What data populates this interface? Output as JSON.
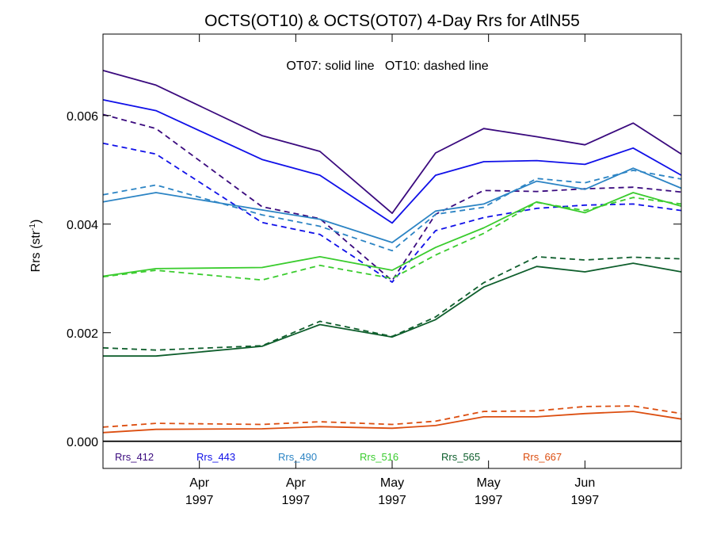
{
  "chart_data": {
    "type": "line",
    "title": "OCTS(OT10) & OCTS(OT07) 4-Day Rrs for AtlN55",
    "annotation": "OT07: solid line   OT10: dashed line",
    "ylabel_base": "Rrs (str",
    "ylabel_sup": "-1",
    "ylabel_close": ")",
    "ylim": [
      -0.0005,
      0.0075
    ],
    "yticks": [
      {
        "value": 0.0,
        "label": "0.000"
      },
      {
        "value": 0.002,
        "label": "0.002"
      },
      {
        "value": 0.004,
        "label": "0.004"
      },
      {
        "value": 0.006,
        "label": "0.006"
      }
    ],
    "xlim": [
      0,
      12
    ],
    "xticks": [
      {
        "x": 2,
        "month": "Apr",
        "year": "1997"
      },
      {
        "x": 4,
        "month": "Apr",
        "year": "1997"
      },
      {
        "x": 6,
        "month": "May",
        "year": "1997"
      },
      {
        "x": 8,
        "month": "May",
        "year": "1997"
      },
      {
        "x": 10,
        "month": "Jun",
        "year": "1997"
      }
    ],
    "x": [
      0,
      1.1,
      3.3,
      4.5,
      6.0,
      6.9,
      7.9,
      9.0,
      10.0,
      11.0,
      12.0
    ],
    "series": [
      {
        "name": "Rrs_412",
        "color": "#3a0a7e",
        "solid": [
          0.00683,
          0.00656,
          0.00563,
          0.00534,
          0.0042,
          0.00531,
          0.00576,
          0.00561,
          0.00546,
          0.00586,
          0.00529
        ],
        "dashed": [
          0.00602,
          0.00576,
          0.00432,
          0.0041,
          0.00296,
          0.00418,
          0.00462,
          0.0046,
          0.00465,
          0.00468,
          0.00459
        ]
      },
      {
        "name": "Rrs_443",
        "color": "#1010e8",
        "solid": [
          0.00629,
          0.00609,
          0.00519,
          0.0049,
          0.00402,
          0.0049,
          0.00515,
          0.00517,
          0.0051,
          0.0054,
          0.0049
        ],
        "dashed": [
          0.00549,
          0.00529,
          0.00403,
          0.00381,
          0.00293,
          0.00388,
          0.00412,
          0.00429,
          0.00435,
          0.00437,
          0.00425
        ]
      },
      {
        "name": "Rrs_490",
        "color": "#2c84c4",
        "solid": [
          0.00441,
          0.00458,
          0.00426,
          0.00409,
          0.00366,
          0.00424,
          0.00437,
          0.00479,
          0.00464,
          0.00503,
          0.00466
        ],
        "dashed": [
          0.00454,
          0.00472,
          0.00417,
          0.00396,
          0.00351,
          0.00418,
          0.00431,
          0.00484,
          0.00476,
          0.00499,
          0.00483
        ]
      },
      {
        "name": "Rrs_516",
        "color": "#3acc2e",
        "solid": [
          0.00304,
          0.00318,
          0.0032,
          0.0034,
          0.00315,
          0.00357,
          0.00393,
          0.00441,
          0.00421,
          0.00458,
          0.00433
        ],
        "dashed": [
          0.00303,
          0.00315,
          0.00297,
          0.00324,
          0.003,
          0.00343,
          0.00383,
          0.0044,
          0.00425,
          0.00449,
          0.00437
        ]
      },
      {
        "name": "Rrs_565",
        "color": "#0e5e2c",
        "solid": [
          0.00157,
          0.00157,
          0.00175,
          0.00215,
          0.00192,
          0.00224,
          0.00284,
          0.00322,
          0.00312,
          0.00328,
          0.00312
        ],
        "dashed": [
          0.00172,
          0.00168,
          0.00176,
          0.00221,
          0.00193,
          0.00229,
          0.00292,
          0.0034,
          0.00334,
          0.00339,
          0.00336
        ]
      },
      {
        "name": "Rrs_667",
        "color": "#dc4e10",
        "solid": [
          0.00016,
          0.00022,
          0.00023,
          0.00027,
          0.00024,
          0.00029,
          0.00045,
          0.00045,
          0.00051,
          0.00055,
          0.00041
        ],
        "dashed": [
          0.00026,
          0.00033,
          0.00031,
          0.00036,
          0.00031,
          0.00037,
          0.00055,
          0.00056,
          0.00064,
          0.00065,
          0.00051
        ]
      }
    ],
    "zero_line": 0.0,
    "legend_position": "bottom-inside"
  }
}
